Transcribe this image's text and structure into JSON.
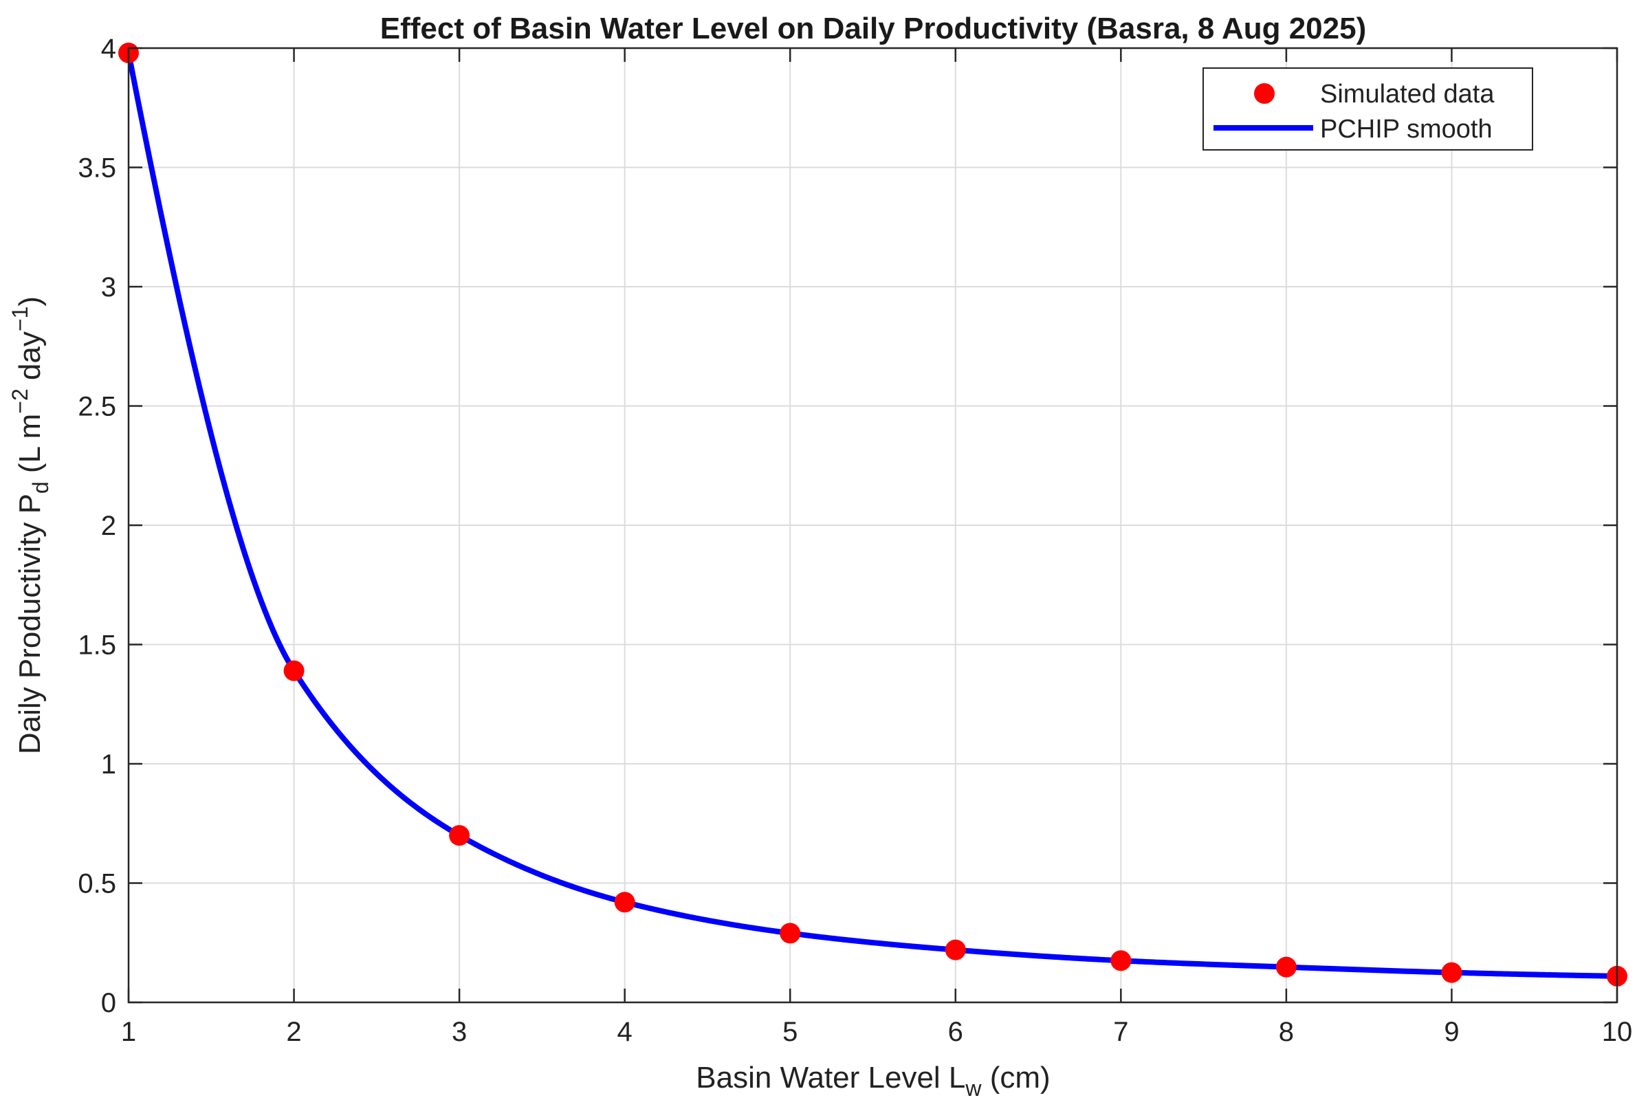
{
  "chart_data": {
    "type": "line",
    "title": "Effect of Basin Water Level on Daily Productivity (Basra, 8 Aug 2025)",
    "xlabel": {
      "prefix": "Basin  Water  Level  L",
      "sub": "w",
      "suffix": "  (cm)"
    },
    "ylabel": {
      "prefix": "Daily  Productivity  P",
      "sub": "d",
      "middle": "  (L  m",
      "sup1": "−2",
      "middle2": "  day",
      "sup2": "−1",
      "suffix": ")"
    },
    "xlim": [
      1,
      10
    ],
    "ylim": [
      0,
      4
    ],
    "xticks": [
      1,
      2,
      3,
      4,
      5,
      6,
      7,
      8,
      9,
      10
    ],
    "xtick_labels": [
      "1",
      "2",
      "3",
      "4",
      "5",
      "6",
      "7",
      "8",
      "9",
      "10"
    ],
    "yticks": [
      0,
      0.5,
      1,
      1.5,
      2,
      2.5,
      3,
      3.5,
      4
    ],
    "ytick_labels": [
      "0",
      "0.5",
      "1",
      "1.5",
      "2",
      "2.5",
      "3",
      "3.5",
      "4"
    ],
    "grid": true,
    "legend_position": "top-right",
    "series": [
      {
        "name": "Simulated data",
        "style": "markers",
        "color": "#ff0000",
        "x": [
          1,
          2,
          3,
          4,
          5,
          6,
          7,
          8,
          9,
          10
        ],
        "y": [
          3.98,
          1.39,
          0.7,
          0.42,
          0.29,
          0.22,
          0.175,
          0.148,
          0.125,
          0.11
        ]
      },
      {
        "name": "PCHIP smooth",
        "style": "line",
        "color": "#0000ff",
        "interpolation": "pchip",
        "x": [
          1,
          2,
          3,
          4,
          5,
          6,
          7,
          8,
          9,
          10
        ],
        "y": [
          3.98,
          1.39,
          0.7,
          0.42,
          0.29,
          0.22,
          0.175,
          0.148,
          0.125,
          0.11
        ]
      }
    ]
  }
}
